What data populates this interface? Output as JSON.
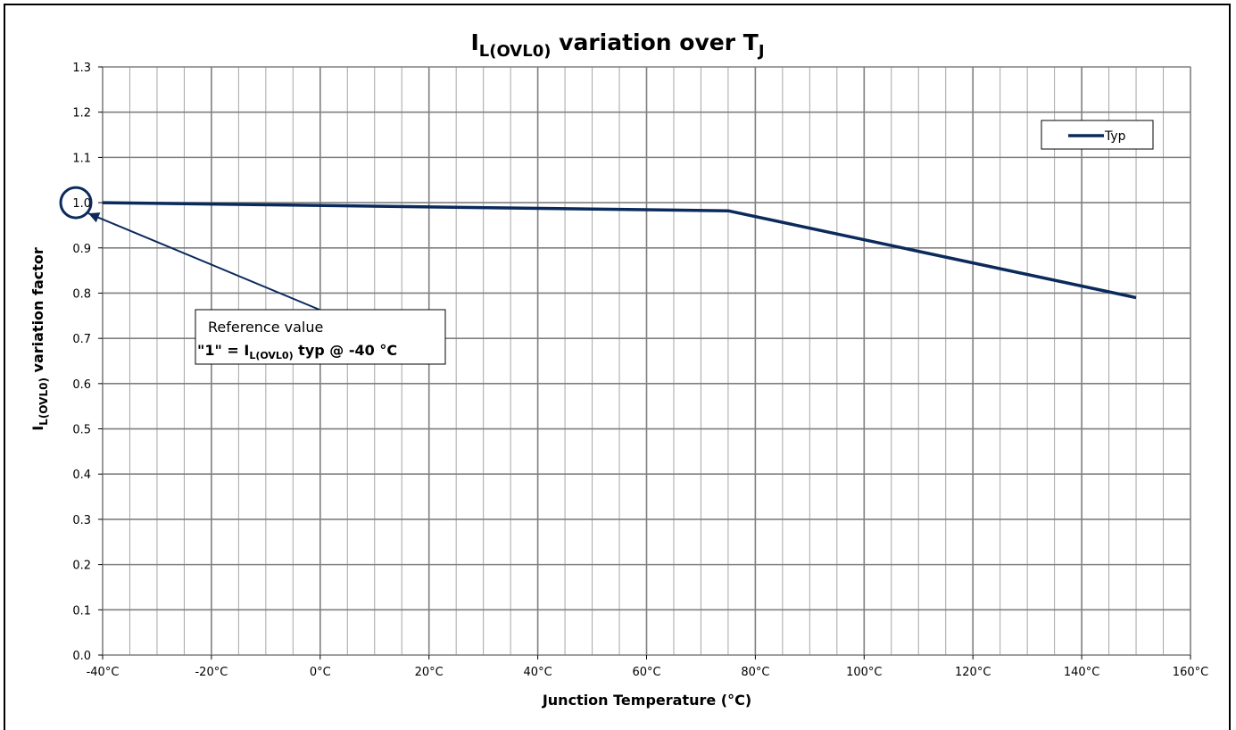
{
  "chart_data": {
    "type": "line",
    "title": {
      "main": "I",
      "sub": "L(OVL0)",
      "middle": " variation over T",
      "tail_sub": "J"
    },
    "xlabel": "Junction Temperature (°C)",
    "ylabel": {
      "main": "I",
      "sub": "L(OVL0)",
      "rest": " variation factor"
    },
    "xlim": [
      -40,
      160
    ],
    "ylim": [
      0,
      1.3
    ],
    "x_ticks": [
      "-40°C",
      "-20°C",
      "0°C",
      "20°C",
      "40°C",
      "60°C",
      "80°C",
      "100°C",
      "120°C",
      "140°C",
      "160°C"
    ],
    "y_ticks": [
      "0.0",
      "0.1",
      "0.2",
      "0.3",
      "0.4",
      "0.5",
      "0.6",
      "0.7",
      "0.8",
      "0.9",
      "1.0",
      "1.1",
      "1.2",
      "1.3"
    ],
    "grid": true,
    "legend_position": "top-right",
    "series": [
      {
        "name": "Typ",
        "color": "#0b2a5c",
        "x": [
          -40,
          75,
          150
        ],
        "y": [
          1.0,
          0.982,
          0.79
        ]
      }
    ],
    "annotation": {
      "line1": "Reference value",
      "line2_prefix": "\"1\" = I",
      "line2_sub": "L(OVL0)",
      "line2_suffix": " typ @ -40 °C",
      "target_x": -40,
      "target_y": 1.0
    }
  }
}
